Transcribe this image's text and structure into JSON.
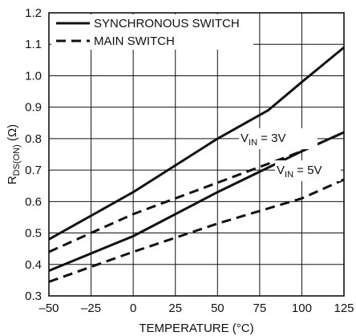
{
  "chart_data": {
    "type": "line",
    "xlabel": "TEMPERATURE (°C)",
    "ylabel": {
      "base": "R",
      "sub": "DS(ON)",
      "unit": " (Ω)"
    },
    "xlim": [
      -50,
      125
    ],
    "ylim": [
      0.3,
      1.2
    ],
    "x_ticks": [
      -50,
      -25,
      0,
      25,
      50,
      75,
      100,
      125
    ],
    "x_tick_labels": [
      "–50",
      "–25",
      "0",
      "25",
      "50",
      "75",
      "100",
      "125"
    ],
    "y_ticks": [
      0.3,
      0.4,
      0.5,
      0.6,
      0.7,
      0.8,
      0.9,
      1.0,
      1.1,
      1.2
    ],
    "y_tick_labels": [
      "0.3",
      "0.4",
      "0.5",
      "0.6",
      "0.7",
      "0.8",
      "0.9",
      "1.0",
      "1.1",
      "1.2"
    ],
    "grid": true,
    "legend": {
      "placement": "top-left",
      "entries": [
        {
          "label": "SYNCHRONOUS SWITCH",
          "style": "solid"
        },
        {
          "label": "MAIN SWITCH",
          "style": "dashed"
        }
      ]
    },
    "annotations": [
      {
        "label_base": "V",
        "label_sub": "IN",
        "label_rest": " = 3V"
      },
      {
        "label_base": "V",
        "label_sub": "IN",
        "label_rest": " = 5V"
      }
    ],
    "series": [
      {
        "legend": "SYNCHRONOUS SWITCH",
        "condition": "VIN = 3V",
        "style": "solid",
        "x": [
          -50,
          0,
          50,
          80,
          100,
          125
        ],
        "y": [
          0.48,
          0.63,
          0.8,
          0.89,
          0.98,
          1.09
        ]
      },
      {
        "legend": "MAIN SWITCH",
        "condition": "VIN = 3V",
        "style": "dashed",
        "x": [
          -50,
          0,
          50,
          100,
          125
        ],
        "y": [
          0.44,
          0.56,
          0.66,
          0.76,
          0.82
        ]
      },
      {
        "legend": "SYNCHRONOUS SWITCH",
        "condition": "VIN = 5V",
        "style": "solid",
        "x": [
          -50,
          0,
          50,
          100,
          125
        ],
        "y": [
          0.38,
          0.49,
          0.63,
          0.76,
          0.82
        ]
      },
      {
        "legend": "MAIN SWITCH",
        "condition": "VIN = 5V",
        "style": "dashed",
        "x": [
          -50,
          0,
          50,
          100,
          125
        ],
        "y": [
          0.345,
          0.44,
          0.53,
          0.61,
          0.67
        ]
      }
    ],
    "colors": {
      "line": "#111111",
      "grid": "#111111",
      "background": "#ffffff"
    }
  }
}
